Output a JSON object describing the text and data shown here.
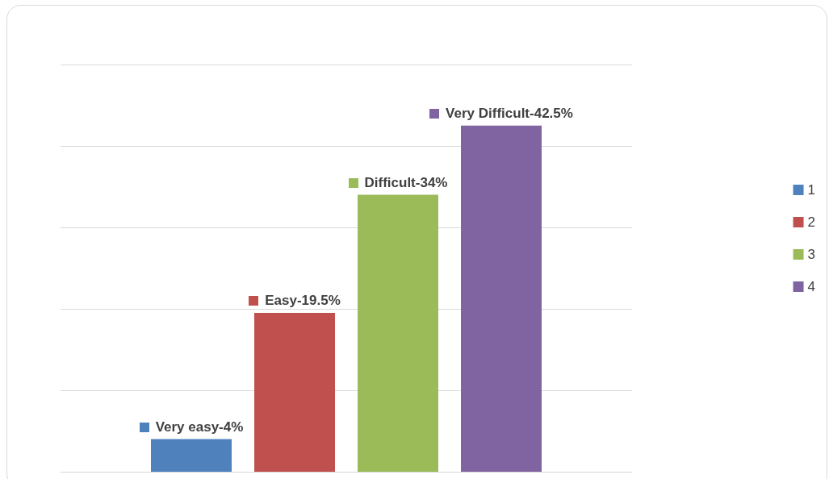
{
  "chart_data": {
    "type": "bar",
    "categories": [
      null
    ],
    "series": [
      {
        "name": "1",
        "color": "#4f81bd",
        "values": [
          4
        ],
        "value_labels": [
          "4%"
        ]
      },
      {
        "name": "2",
        "color": "#c0504d",
        "values": [
          19.5
        ],
        "value_labels": [
          "19.5%"
        ]
      },
      {
        "name": "3",
        "color": "#9bbb59",
        "values": [
          34
        ],
        "value_labels": [
          "34%"
        ]
      },
      {
        "name": "4",
        "color": "#8064a2",
        "values": [
          42.5
        ],
        "value_labels": [
          "42.5%"
        ]
      }
    ],
    "annotations": [
      "Very easy-",
      "Easy-",
      "Difficult-",
      "Very Difficult-"
    ],
    "grid": "y",
    "legend": "right"
  }
}
